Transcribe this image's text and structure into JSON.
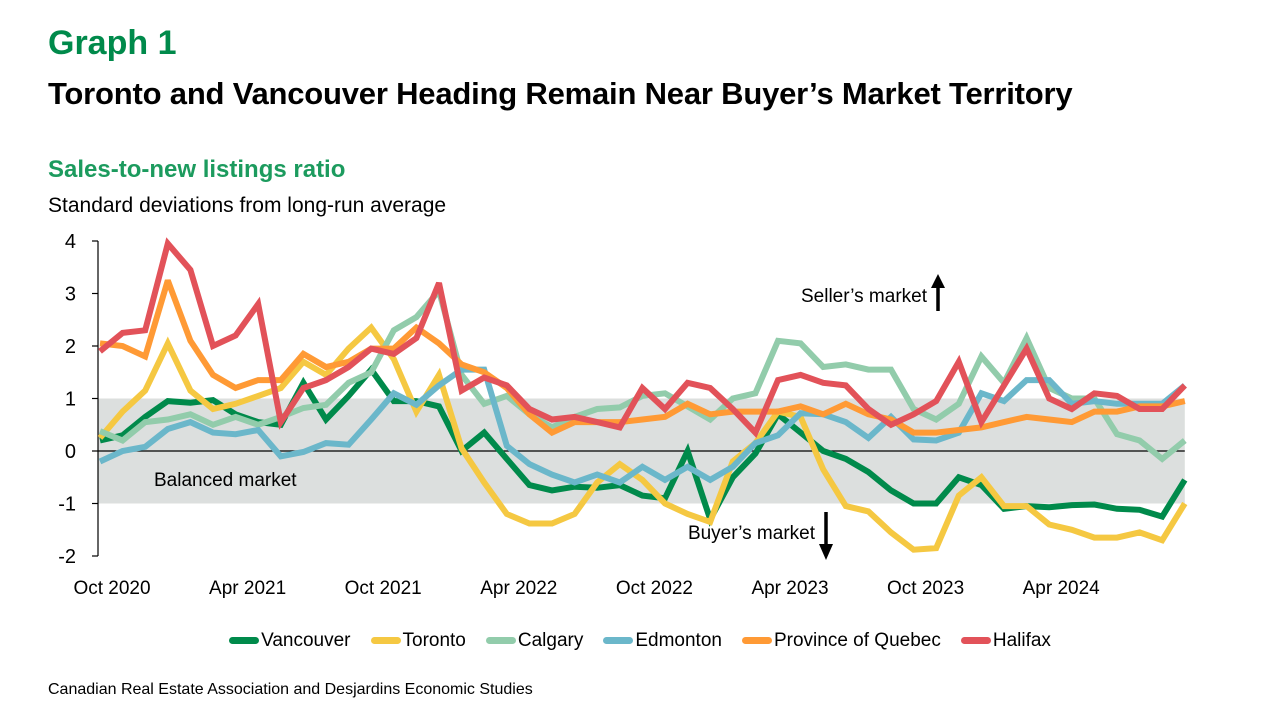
{
  "header": {
    "graph_number": "Graph 1",
    "title": "Toronto and Vancouver Heading Remain Near Buyer’s Market Territory"
  },
  "source": "Canadian Real Estate Association and Desjardins Economic Studies",
  "chart_data": {
    "type": "line",
    "title": "Sales-to-new listings ratio",
    "subtitle": "Standard deviations from long-run average",
    "xlabel": "",
    "ylabel": "",
    "ylim": [
      -2,
      4
    ],
    "yticks": [
      4,
      3,
      2,
      1,
      0,
      -1,
      -2
    ],
    "x_start": "Oct 2020",
    "x_end": "Oct 2024",
    "frequency": "monthly",
    "xticks": [
      {
        "index": 0,
        "label": "Oct 2020"
      },
      {
        "index": 6,
        "label": "Apr 2021"
      },
      {
        "index": 12,
        "label": "Oct 2021"
      },
      {
        "index": 18,
        "label": "Apr 2022"
      },
      {
        "index": 24,
        "label": "Oct 2022"
      },
      {
        "index": 30,
        "label": "Apr 2023"
      },
      {
        "index": 36,
        "label": "Oct 2023"
      },
      {
        "index": 42,
        "label": "Apr 2024"
      }
    ],
    "shaded_band": {
      "from": -1,
      "to": 1,
      "color": "#DCDFDE",
      "label": "Balanced market"
    },
    "annotations": [
      {
        "text": "Seller’s market",
        "arrow": "up"
      },
      {
        "text": "Buyer’s market",
        "arrow": "down"
      }
    ],
    "legend_position": "bottom",
    "grid": false,
    "series": [
      {
        "name": "Vancouver",
        "color": "#008A4B",
        "values": [
          0.2,
          0.3,
          0.65,
          0.95,
          0.92,
          0.97,
          0.7,
          0.55,
          0.5,
          1.3,
          0.6,
          1.05,
          1.55,
          0.95,
          0.95,
          0.85,
          0.0,
          0.35,
          -0.15,
          -0.65,
          -0.75,
          -0.68,
          -0.7,
          -0.65,
          -0.85,
          -0.9,
          0.0,
          -1.3,
          -0.5,
          -0.05,
          0.7,
          0.35,
          0.0,
          -0.15,
          -0.4,
          -0.75,
          -1.0,
          -1.0,
          -0.5,
          -0.65,
          -1.1,
          -1.05,
          -1.07,
          -1.03,
          -1.02,
          -1.1,
          -1.12,
          -1.25,
          -0.55
        ]
      },
      {
        "name": "Toronto",
        "color": "#F5C842",
        "values": [
          0.25,
          0.75,
          1.15,
          2.05,
          1.15,
          0.8,
          0.9,
          1.05,
          1.2,
          1.7,
          1.45,
          1.95,
          2.35,
          1.75,
          0.75,
          1.45,
          0.05,
          -0.6,
          -1.2,
          -1.38,
          -1.38,
          -1.2,
          -0.6,
          -0.25,
          -0.55,
          -1.0,
          -1.2,
          -1.35,
          -0.2,
          0.15,
          0.75,
          0.65,
          -0.35,
          -1.05,
          -1.15,
          -1.55,
          -1.88,
          -1.85,
          -0.85,
          -0.5,
          -1.05,
          -1.05,
          -1.4,
          -1.5,
          -1.65,
          -1.65,
          -1.55,
          -1.7,
          -1.0
        ]
      },
      {
        "name": "Calgary",
        "color": "#92CCAB",
        "values": [
          0.38,
          0.2,
          0.55,
          0.6,
          0.7,
          0.5,
          0.65,
          0.5,
          0.65,
          0.82,
          0.88,
          1.3,
          1.5,
          2.3,
          2.55,
          3.05,
          1.45,
          0.9,
          1.05,
          0.7,
          0.45,
          0.65,
          0.8,
          0.83,
          1.05,
          1.1,
          0.85,
          0.6,
          1.0,
          1.1,
          2.1,
          2.05,
          1.6,
          1.65,
          1.55,
          1.55,
          0.8,
          0.6,
          0.9,
          1.8,
          1.3,
          2.15,
          1.2,
          1.0,
          1.0,
          0.32,
          0.2,
          -0.15,
          0.2
        ]
      },
      {
        "name": "Edmonton",
        "color": "#6BB7CA",
        "values": [
          -0.2,
          0.0,
          0.08,
          0.42,
          0.55,
          0.35,
          0.32,
          0.4,
          -0.1,
          -0.02,
          0.15,
          0.12,
          0.6,
          1.1,
          0.88,
          1.25,
          1.55,
          1.55,
          0.1,
          -0.25,
          -0.45,
          -0.6,
          -0.45,
          -0.6,
          -0.3,
          -0.55,
          -0.3,
          -0.55,
          -0.3,
          0.15,
          0.3,
          0.72,
          0.7,
          0.55,
          0.25,
          0.65,
          0.22,
          0.2,
          0.35,
          1.1,
          0.95,
          1.35,
          1.35,
          0.9,
          0.95,
          0.9,
          0.9,
          0.9,
          1.25
        ]
      },
      {
        "name": "Province of Quebec",
        "color": "#FF9A35",
        "values": [
          2.05,
          2.0,
          1.8,
          3.25,
          2.1,
          1.45,
          1.2,
          1.35,
          1.35,
          1.85,
          1.6,
          1.7,
          1.95,
          1.95,
          2.35,
          2.05,
          1.65,
          1.5,
          1.2,
          0.7,
          0.35,
          0.55,
          0.55,
          0.55,
          0.6,
          0.65,
          0.9,
          0.7,
          0.75,
          0.75,
          0.75,
          0.85,
          0.7,
          0.9,
          0.7,
          0.6,
          0.35,
          0.35,
          0.4,
          0.45,
          0.55,
          0.65,
          0.6,
          0.55,
          0.75,
          0.75,
          0.85,
          0.85,
          0.95
        ]
      },
      {
        "name": "Halifax",
        "color": "#E25259",
        "values": [
          1.9,
          2.25,
          2.3,
          3.95,
          3.45,
          2.0,
          2.2,
          2.8,
          0.55,
          1.2,
          1.35,
          1.6,
          1.95,
          1.85,
          2.15,
          3.2,
          1.15,
          1.4,
          1.25,
          0.8,
          0.6,
          0.65,
          0.55,
          0.45,
          1.2,
          0.8,
          1.3,
          1.2,
          0.8,
          0.35,
          1.35,
          1.45,
          1.3,
          1.25,
          0.8,
          0.5,
          0.7,
          0.95,
          1.7,
          0.55,
          1.25,
          1.95,
          1.0,
          0.8,
          1.1,
          1.05,
          0.8,
          0.8,
          1.25
        ]
      }
    ]
  }
}
